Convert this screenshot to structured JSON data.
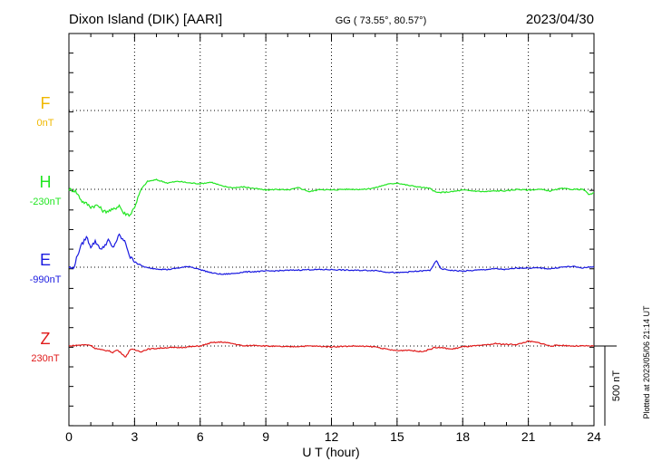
{
  "header": {
    "station": "Dixon Island (DIK)  [AARI]",
    "coords": "GG ( 73.55°,  80.57°)",
    "date": "2023/04/30"
  },
  "footer": {
    "plotted": "Plotted at 2023/05/06 21:14 UT"
  },
  "colors": {
    "F": "#f0b800",
    "H": "#22e622",
    "E": "#1a1ae0",
    "Z": "#e01a1a"
  },
  "chart_data": {
    "type": "line",
    "title": "Dixon Island (DIK)  [AARI]",
    "xlabel": "U T (hour)",
    "ylabel": "",
    "xlim": [
      0,
      24
    ],
    "x_ticks": [
      0,
      3,
      6,
      9,
      12,
      15,
      18,
      21,
      24
    ],
    "x_tick_labels": [
      "0",
      "3",
      "6",
      "9",
      "12",
      "15",
      "18",
      "21",
      "24"
    ],
    "grid": true,
    "scale_bar": {
      "label": "500 nT",
      "value_nT": 500
    },
    "series": [
      {
        "name": "F",
        "baseline_label": "0nT",
        "baseline_nT": 0,
        "points": []
      },
      {
        "name": "H",
        "baseline_label": "-230nT",
        "baseline_nT": -230,
        "points": [
          [
            0,
            0
          ],
          [
            0.3,
            -10
          ],
          [
            0.6,
            -75
          ],
          [
            0.8,
            -90
          ],
          [
            1.0,
            -110
          ],
          [
            1.3,
            -100
          ],
          [
            1.6,
            -140
          ],
          [
            2.0,
            -130
          ],
          [
            2.3,
            -100
          ],
          [
            2.5,
            -150
          ],
          [
            2.8,
            -160
          ],
          [
            3.0,
            -110
          ],
          [
            3.3,
            0
          ],
          [
            3.6,
            50
          ],
          [
            4.0,
            60
          ],
          [
            4.5,
            40
          ],
          [
            5.0,
            50
          ],
          [
            5.5,
            40
          ],
          [
            6.0,
            35
          ],
          [
            6.5,
            45
          ],
          [
            7.0,
            20
          ],
          [
            7.5,
            10
          ],
          [
            8.0,
            15
          ],
          [
            8.5,
            5
          ],
          [
            9.0,
            -5
          ],
          [
            9.5,
            0
          ],
          [
            10.0,
            -5
          ],
          [
            10.5,
            10
          ],
          [
            11.0,
            -15
          ],
          [
            11.5,
            0
          ],
          [
            12.0,
            -5
          ],
          [
            12.5,
            0
          ],
          [
            13.0,
            0
          ],
          [
            13.5,
            0
          ],
          [
            14.0,
            10
          ],
          [
            14.5,
            30
          ],
          [
            15.0,
            40
          ],
          [
            15.5,
            25
          ],
          [
            16.0,
            15
          ],
          [
            16.5,
            5
          ],
          [
            16.8,
            -20
          ],
          [
            17.0,
            -20
          ],
          [
            17.5,
            -15
          ],
          [
            18.0,
            -5
          ],
          [
            18.5,
            -10
          ],
          [
            19.0,
            -15
          ],
          [
            19.5,
            -10
          ],
          [
            20.0,
            -10
          ],
          [
            20.5,
            0
          ],
          [
            21.0,
            -5
          ],
          [
            21.5,
            0
          ],
          [
            22.0,
            -10
          ],
          [
            22.5,
            5
          ],
          [
            23.0,
            0
          ],
          [
            23.5,
            0
          ],
          [
            23.8,
            -35
          ],
          [
            24.0,
            -20
          ]
        ]
      },
      {
        "name": "E",
        "baseline_label": "-990nT",
        "baseline_nT": -990,
        "points": [
          [
            0,
            0
          ],
          [
            0.2,
            -10
          ],
          [
            0.5,
            120
          ],
          [
            0.8,
            190
          ],
          [
            1.0,
            130
          ],
          [
            1.2,
            160
          ],
          [
            1.5,
            110
          ],
          [
            1.8,
            170
          ],
          [
            2.0,
            120
          ],
          [
            2.3,
            200
          ],
          [
            2.6,
            150
          ],
          [
            2.8,
            60
          ],
          [
            3.0,
            40
          ],
          [
            3.3,
            10
          ],
          [
            3.6,
            -5
          ],
          [
            4.0,
            -10
          ],
          [
            4.5,
            -15
          ],
          [
            5.0,
            -5
          ],
          [
            5.5,
            5
          ],
          [
            6.0,
            -15
          ],
          [
            6.5,
            -35
          ],
          [
            7.0,
            -45
          ],
          [
            7.5,
            -40
          ],
          [
            8.0,
            -30
          ],
          [
            9.0,
            -25
          ],
          [
            10.0,
            -20
          ],
          [
            11.0,
            -15
          ],
          [
            12.0,
            -15
          ],
          [
            13.0,
            -20
          ],
          [
            14.0,
            -20
          ],
          [
            14.5,
            -30
          ],
          [
            15.0,
            -35
          ],
          [
            15.5,
            -30
          ],
          [
            16.0,
            -25
          ],
          [
            16.5,
            -20
          ],
          [
            16.8,
            40
          ],
          [
            17.0,
            -10
          ],
          [
            17.5,
            -20
          ],
          [
            18.0,
            -25
          ],
          [
            18.5,
            -20
          ],
          [
            19.0,
            -15
          ],
          [
            19.5,
            -10
          ],
          [
            20.0,
            -15
          ],
          [
            20.5,
            -5
          ],
          [
            21.0,
            -5
          ],
          [
            21.5,
            -5
          ],
          [
            22.0,
            -10
          ],
          [
            22.5,
            0
          ],
          [
            23.0,
            5
          ],
          [
            23.5,
            -5
          ],
          [
            24.0,
            5
          ]
        ]
      },
      {
        "name": "Z",
        "baseline_label": "230nT",
        "baseline_nT": 230,
        "points": [
          [
            0,
            0
          ],
          [
            0.4,
            5
          ],
          [
            0.8,
            8
          ],
          [
            1.0,
            5
          ],
          [
            1.2,
            -15
          ],
          [
            1.5,
            -25
          ],
          [
            1.8,
            -30
          ],
          [
            2.0,
            -40
          ],
          [
            2.2,
            -25
          ],
          [
            2.4,
            -45
          ],
          [
            2.6,
            -70
          ],
          [
            2.8,
            -20
          ],
          [
            3.0,
            -25
          ],
          [
            3.3,
            -35
          ],
          [
            3.6,
            -20
          ],
          [
            4.0,
            -15
          ],
          [
            4.5,
            -10
          ],
          [
            5.0,
            -10
          ],
          [
            5.5,
            -5
          ],
          [
            6.0,
            0
          ],
          [
            6.5,
            20
          ],
          [
            7.0,
            25
          ],
          [
            7.5,
            15
          ],
          [
            8.0,
            0
          ],
          [
            8.5,
            5
          ],
          [
            9.0,
            0
          ],
          [
            10.0,
            -5
          ],
          [
            11.0,
            0
          ],
          [
            12.0,
            -5
          ],
          [
            13.0,
            0
          ],
          [
            14.0,
            -5
          ],
          [
            14.5,
            -20
          ],
          [
            15.0,
            -30
          ],
          [
            15.5,
            -25
          ],
          [
            16.0,
            -35
          ],
          [
            16.3,
            -30
          ],
          [
            16.7,
            -10
          ],
          [
            17.0,
            -10
          ],
          [
            17.5,
            -20
          ],
          [
            18.0,
            -5
          ],
          [
            18.5,
            0
          ],
          [
            19.0,
            5
          ],
          [
            19.5,
            15
          ],
          [
            20.0,
            10
          ],
          [
            20.5,
            10
          ],
          [
            21.0,
            30
          ],
          [
            21.5,
            20
          ],
          [
            22.0,
            0
          ],
          [
            22.5,
            5
          ],
          [
            23.0,
            0
          ],
          [
            24.0,
            0
          ]
        ]
      }
    ]
  }
}
